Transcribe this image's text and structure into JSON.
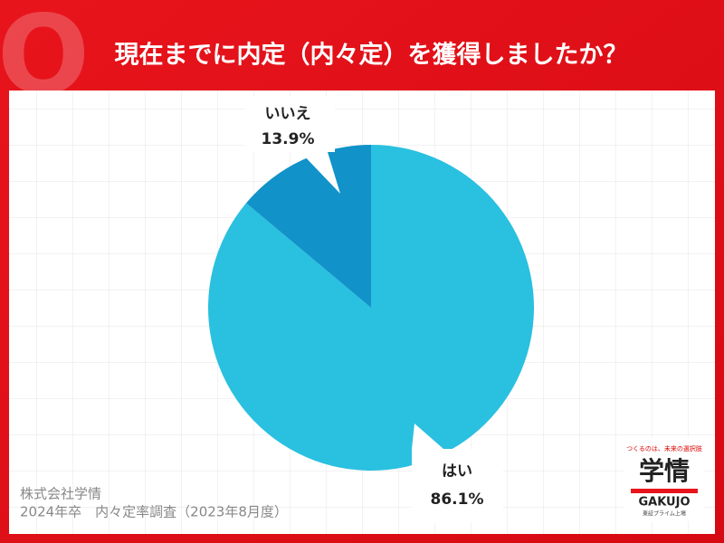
{
  "header": {
    "badge": "Q"
  },
  "chart_data": {
    "type": "pie",
    "title": "現在までに内定（内々定）を獲得しましたか？",
    "categories": [
      "はい",
      "いいえ"
    ],
    "values": [
      86.1,
      13.9
    ],
    "value_labels": [
      "86.1%",
      "13.9%"
    ],
    "colors": [
      "#2ac0e0",
      "#1192c9"
    ]
  },
  "footer": {
    "source": [
      "株式会社学情",
      "2024年卒　内々定率調査（2023年8月度）"
    ]
  },
  "logo": {
    "tagline": "つくるのは、未来の選択肢",
    "name": "学情",
    "roman": "GAKUJO",
    "note": "東証プライム上場"
  }
}
